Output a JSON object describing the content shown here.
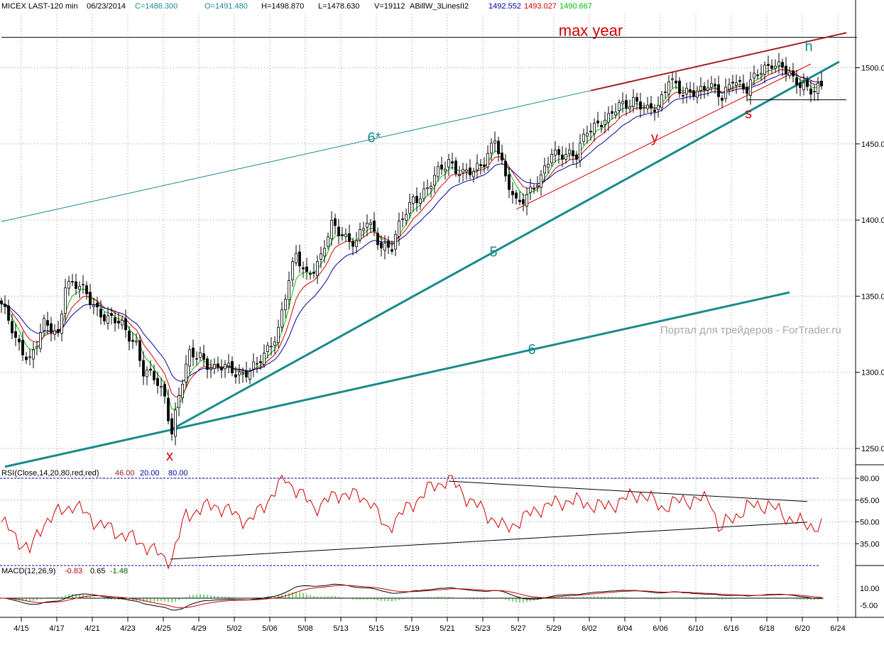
{
  "header": {
    "symbol": "MICEX LAST-120 min",
    "date": "06/23/2014",
    "close": "C=1486.300",
    "open": "O=1491.480",
    "high": "H=1498.870",
    "low": "L=1478.630",
    "volume": "V=19112",
    "indicator": "ABillW_3LinesII2",
    "ind_blue": "1492.552",
    "ind_red": "1493.027",
    "ind_green": "1490.667"
  },
  "rsi_header": {
    "label": "RSI(Close,14,20,80,red,red)",
    "value": "46.00",
    "low": "20.00",
    "high": "80.00"
  },
  "macd_header": {
    "label": "MACD(12,26,9)",
    "macd": "-0.83",
    "signal": "0.65",
    "hist": "-1.48"
  },
  "watermark": "Портал для трейдеров - ForTrader.ru",
  "colors": {
    "green": "#00c000",
    "red": "#d00000",
    "blue": "#0000a0",
    "teal": "#1a8a8a",
    "darkred": "#a02020"
  },
  "chart_data": {
    "type": "candlestick",
    "title": "MICEX LAST-120 min",
    "x_unit": "bar",
    "price_axis": {
      "ticks": [
        1250,
        1300,
        1350,
        1400,
        1450,
        1500
      ],
      "labels": [
        "1250.0",
        "1300.0",
        "1350.0",
        "1400.0",
        "1450.0",
        "1500.0"
      ],
      "ylim": [
        1236,
        1545
      ]
    },
    "date_ticks": [
      {
        "bar": 5.6,
        "label": "4/15"
      },
      {
        "bar": 15.6,
        "label": "4/17"
      },
      {
        "bar": 25.6,
        "label": "4/21"
      },
      {
        "bar": 35.6,
        "label": "4/23"
      },
      {
        "bar": 45.6,
        "label": "4/25"
      },
      {
        "bar": 55.6,
        "label": "4/29"
      },
      {
        "bar": 65.6,
        "label": "5/02"
      },
      {
        "bar": 75.6,
        "label": "5/06"
      },
      {
        "bar": 85.6,
        "label": "5/08"
      },
      {
        "bar": 95.6,
        "label": "5/13"
      },
      {
        "bar": 105.6,
        "label": "5/15"
      },
      {
        "bar": 115.6,
        "label": "5/19"
      },
      {
        "bar": 125.6,
        "label": "5/21"
      },
      {
        "bar": 135.6,
        "label": "5/23"
      },
      {
        "bar": 145.6,
        "label": "5/27"
      },
      {
        "bar": 155.6,
        "label": "5/29"
      },
      {
        "bar": 165.6,
        "label": "6/02"
      },
      {
        "bar": 175.6,
        "label": "6/04"
      },
      {
        "bar": 185.6,
        "label": "6/06"
      },
      {
        "bar": 195.6,
        "label": "6/10"
      },
      {
        "bar": 205.6,
        "label": "6/16"
      },
      {
        "bar": 215.6,
        "label": "6/18"
      },
      {
        "bar": 225.6,
        "label": "6/20"
      },
      {
        "bar": 235.6,
        "label": "6/24"
      }
    ],
    "close_keypoints": [
      [
        0,
        1345
      ],
      [
        4,
        1320
      ],
      [
        8,
        1310
      ],
      [
        12,
        1330
      ],
      [
        16,
        1325
      ],
      [
        18,
        1360
      ],
      [
        22,
        1355
      ],
      [
        26,
        1345
      ],
      [
        30,
        1335
      ],
      [
        34,
        1330
      ],
      [
        38,
        1320
      ],
      [
        40,
        1300
      ],
      [
        43,
        1295
      ],
      [
        46,
        1285
      ],
      [
        48,
        1262
      ],
      [
        50,
        1285
      ],
      [
        53,
        1310
      ],
      [
        56,
        1312
      ],
      [
        60,
        1302
      ],
      [
        64,
        1302
      ],
      [
        68,
        1300
      ],
      [
        72,
        1303
      ],
      [
        75,
        1315
      ],
      [
        78,
        1330
      ],
      [
        81,
        1360
      ],
      [
        83,
        1375
      ],
      [
        86,
        1365
      ],
      [
        90,
        1375
      ],
      [
        93,
        1395
      ],
      [
        96,
        1392
      ],
      [
        100,
        1385
      ],
      [
        103,
        1398
      ],
      [
        107,
        1385
      ],
      [
        110,
        1382
      ],
      [
        113,
        1400
      ],
      [
        116,
        1415
      ],
      [
        120,
        1420
      ],
      [
        123,
        1430
      ],
      [
        126,
        1440
      ],
      [
        130,
        1430
      ],
      [
        133,
        1430
      ],
      [
        136,
        1440
      ],
      [
        139,
        1455
      ],
      [
        142,
        1425
      ],
      [
        145,
        1412
      ],
      [
        148,
        1418
      ],
      [
        152,
        1425
      ],
      [
        155,
        1445
      ],
      [
        158,
        1445
      ],
      [
        162,
        1440
      ],
      [
        165,
        1460
      ],
      [
        168,
        1465
      ],
      [
        171,
        1465
      ],
      [
        174,
        1475
      ],
      [
        178,
        1480
      ],
      [
        182,
        1470
      ],
      [
        185,
        1475
      ],
      [
        188,
        1495
      ],
      [
        192,
        1480
      ],
      [
        195,
        1485
      ],
      [
        199,
        1490
      ],
      [
        203,
        1478
      ],
      [
        206,
        1495
      ],
      [
        210,
        1485
      ],
      [
        213,
        1495
      ],
      [
        217,
        1505
      ],
      [
        220,
        1500
      ],
      [
        223,
        1490
      ],
      [
        226,
        1490
      ],
      [
        229,
        1486
      ],
      [
        231,
        1486
      ]
    ],
    "moving_averages": [
      {
        "name": "green",
        "period": 5
      },
      {
        "name": "red",
        "period": 9
      },
      {
        "name": "blue",
        "period": 16
      }
    ],
    "rsi": {
      "levels": [
        20,
        80
      ],
      "ticks": [
        "80.00",
        "65.00",
        "50.00",
        "35.00"
      ],
      "tick_values": [
        80,
        65,
        50,
        35
      ],
      "keypoints": [
        [
          0,
          50
        ],
        [
          8,
          30
        ],
        [
          12,
          50
        ],
        [
          20,
          62
        ],
        [
          28,
          48
        ],
        [
          40,
          35
        ],
        [
          47.6,
          22
        ],
        [
          52,
          55
        ],
        [
          60,
          62
        ],
        [
          70,
          50
        ],
        [
          80,
          80
        ],
        [
          88,
          60
        ],
        [
          96,
          70
        ],
        [
          104,
          65
        ],
        [
          108,
          45
        ],
        [
          120,
          72
        ],
        [
          126,
          80
        ],
        [
          132,
          65
        ],
        [
          142,
          45
        ],
        [
          152,
          60
        ],
        [
          160,
          65
        ],
        [
          170,
          60
        ],
        [
          180,
          70
        ],
        [
          186,
          60
        ],
        [
          192,
          65
        ],
        [
          200,
          65
        ],
        [
          202,
          45
        ],
        [
          210,
          60
        ],
        [
          216,
          62
        ],
        [
          220,
          55
        ],
        [
          226,
          48
        ],
        [
          231,
          47
        ]
      ]
    },
    "macd": {
      "ticks": [
        "10.00",
        "-5.00"
      ],
      "tick_values": [
        10,
        -5
      ]
    },
    "trendlines": [
      {
        "name": "max-year-line",
        "panel": "price",
        "from": [
          0,
          1520
        ],
        "to": [
          241,
          1520
        ],
        "color": "black",
        "width": 1
      },
      {
        "name": "line-6star",
        "panel": "price",
        "from": [
          0,
          1399
        ],
        "to": [
          166,
          1485
        ],
        "color": "teal",
        "width": 1
      },
      {
        "name": "line-6star-upper",
        "panel": "price",
        "from": [
          166,
          1485
        ],
        "to": [
          238,
          1523
        ],
        "color": "darkred",
        "width": 2
      },
      {
        "name": "line-5",
        "panel": "price",
        "from": [
          48,
          1262.6
        ],
        "to": [
          236,
          1504
        ],
        "color": "teal",
        "width": 3
      },
      {
        "name": "line-6",
        "panel": "price",
        "from": [
          1,
          1238
        ],
        "to": [
          222,
          1352.5
        ],
        "color": "teal",
        "width": 3
      },
      {
        "name": "line-y",
        "panel": "price",
        "from": [
          145,
          1407
        ],
        "to": [
          228,
          1502.5
        ],
        "color": "red",
        "width": 1
      },
      {
        "name": "support-line",
        "panel": "price",
        "from": [
          210,
          1479
        ],
        "to": [
          238,
          1479
        ],
        "color": "black",
        "width": 1
      },
      {
        "name": "rsi-lower-trend",
        "panel": "rsi",
        "from": [
          47.6,
          24.4
        ],
        "to": [
          227,
          49.8
        ],
        "color": "black",
        "width": 1
      },
      {
        "name": "rsi-upper-trend",
        "panel": "rsi",
        "from": [
          126,
          78
        ],
        "to": [
          227,
          64
        ],
        "color": "black",
        "width": 1
      }
    ],
    "annotations": [
      {
        "text": "max  year",
        "bar": 166,
        "price": 1521,
        "color": "red",
        "size": 22
      },
      {
        "text": "6*",
        "bar": 105,
        "price": 1451,
        "color": "teal",
        "size": 20
      },
      {
        "text": "5",
        "bar": 138.6,
        "price": 1376,
        "color": "teal",
        "size": 20
      },
      {
        "text": "6",
        "bar": 149.4,
        "price": 1312,
        "color": "teal",
        "size": 20
      },
      {
        "text": "x",
        "bar": 47.4,
        "price": 1242,
        "color": "red",
        "size": 20
      },
      {
        "text": "y",
        "bar": 184,
        "price": 1451,
        "color": "red",
        "size": 20
      },
      {
        "text": "s",
        "bar": 210.4,
        "price": 1467,
        "color": "red",
        "size": 20
      },
      {
        "text": "h",
        "bar": 227.4,
        "price": 1511,
        "color": "teal",
        "size": 20
      }
    ]
  }
}
